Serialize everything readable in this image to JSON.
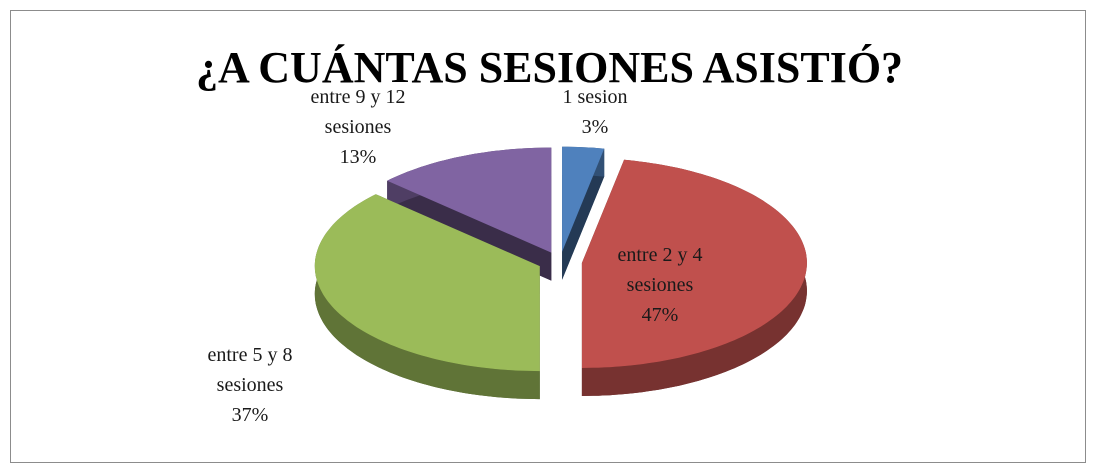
{
  "chart_data": {
    "type": "pie",
    "title": "¿A CUÁNTAS SESIONES ASISTIÓ?",
    "categories": [
      "1 sesion",
      "entre 2 y 4 sesiones",
      "entre 5 y 8 sesiones",
      "entre 9 y 12 sesiones"
    ],
    "values": [
      3,
      47,
      37,
      13
    ],
    "value_labels": [
      "3%",
      "47%",
      "37%",
      "13%"
    ],
    "colors": [
      "#4f81bd",
      "#c0504d",
      "#9bbb59",
      "#8064a2"
    ]
  }
}
